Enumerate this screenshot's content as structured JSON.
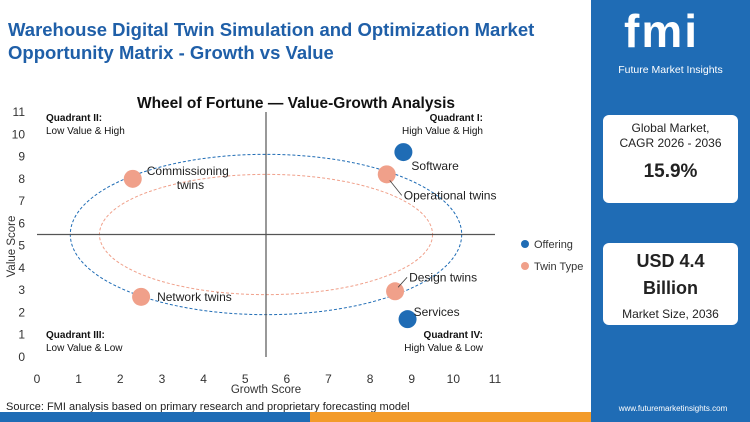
{
  "header": {
    "title": "Warehouse Digital Twin Simulation and Optimization Market Opportunity Matrix - Growth vs Value"
  },
  "brand": {
    "logo_text": "fmi",
    "logo_subtitle": "Future Market Insights",
    "color": "#1f6cb5"
  },
  "cagr_card": {
    "label_line1": "Global Market,",
    "label_line2": "CAGR 2026 - 2036",
    "value": "15.9%"
  },
  "size_card": {
    "value_line1": "USD 4.4",
    "value_line2": "Billion",
    "label": "Market Size, 2036"
  },
  "footer": {
    "source": "Source: FMI analysis based on primary research and proprietary forecasting model",
    "url": "www.futuremarketinsights.com"
  },
  "chart_data": {
    "type": "scatter",
    "title": "Wheel of Fortune — Value-Growth Analysis",
    "xlabel": "Growth Score",
    "ylabel": "Value Score",
    "xlim": [
      0,
      11
    ],
    "ylim": [
      0,
      11
    ],
    "xticks": [
      "0",
      "1",
      "2",
      "3",
      "4",
      "5",
      "6",
      "7",
      "8",
      "9",
      "10",
      "11"
    ],
    "yticks": [
      "0",
      "1",
      "2",
      "3",
      "4",
      "5",
      "6",
      "7",
      "8",
      "9",
      "10",
      "11"
    ],
    "divider": {
      "x": 5.5,
      "y": 5.5
    },
    "grid": false,
    "legend_position": "right",
    "quadrants": [
      {
        "name": "Quadrant II:",
        "desc": "Low Value & High",
        "position": "top-left"
      },
      {
        "name": "Quadrant I:",
        "desc": "High Value & High",
        "position": "top-right"
      },
      {
        "name": "Quadrant III:",
        "desc": "Low Value & Low",
        "position": "bottom-left"
      },
      {
        "name": "Quadrant IV:",
        "desc": "High Value & Low",
        "position": "bottom-right"
      }
    ],
    "series": [
      {
        "name": "Offering",
        "color": "#1f6cb5",
        "points": [
          {
            "label": "Software",
            "x": 8.8,
            "y": 9.2
          },
          {
            "label": "Services",
            "x": 8.9,
            "y": 1.7
          }
        ]
      },
      {
        "name": "Twin Type",
        "color": "#f0a08a",
        "points": [
          {
            "label": "Commissioning twins",
            "x": 2.3,
            "y": 8.0
          },
          {
            "label": "Operational twins",
            "x": 8.4,
            "y": 8.2
          },
          {
            "label": "Network twins",
            "x": 2.5,
            "y": 2.7
          },
          {
            "label": "Design twins",
            "x": 8.6,
            "y": 2.95
          }
        ]
      }
    ]
  }
}
